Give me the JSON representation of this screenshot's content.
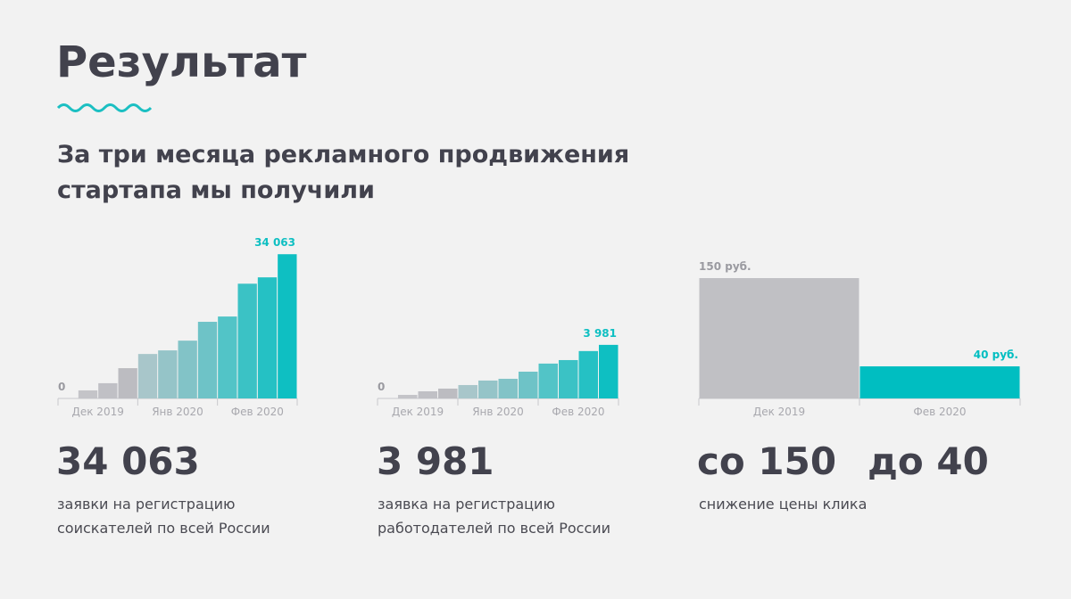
{
  "title": "Результат",
  "subtitle": [
    "За три месяца рекламного продвижения",
    "стартапа мы получили"
  ],
  "chart_data": [
    {
      "type": "bar",
      "categories": [
        "Дек 2019",
        "Янв 2020",
        "Фев 2020"
      ],
      "values": [
        [
          0,
          1900,
          3600,
          7150
        ],
        [
          10500,
          11350,
          13650,
          18100
        ],
        [
          19350,
          27100,
          28600,
          34063
        ]
      ],
      "value_labels": [
        [
          "0",
          null,
          null,
          null
        ],
        [
          null,
          null,
          null,
          null
        ],
        [
          null,
          null,
          null,
          "34 063"
        ]
      ],
      "colors": [
        [
          "#c8c8cc",
          "#c4c4c8",
          "#c0c0c5",
          "#bcbcc1"
        ],
        [
          "#a8c6ca",
          "#95c4c8",
          "#82c3c7",
          "#6ec3c7"
        ],
        [
          "#52c4c7",
          "#3bc2c5",
          "#25c1c4",
          "#0ebfc2"
        ]
      ],
      "ylim": [
        0,
        40000
      ]
    },
    {
      "type": "bar",
      "categories": [
        "Дек 2019",
        "Янв 2020",
        "Фев 2020"
      ],
      "values": [
        [
          0,
          265,
          530,
          730
        ],
        [
          995,
          1330,
          1460,
          1990
        ],
        [
          2590,
          2850,
          3520,
          3981
        ]
      ],
      "value_labels": [
        [
          "0",
          null,
          null,
          null
        ],
        [
          null,
          null,
          null,
          null
        ],
        [
          null,
          null,
          null,
          "3 981"
        ]
      ],
      "colors": [
        [
          "#c8c8cc",
          "#c4c4c8",
          "#c0c0c5",
          "#bcbcc1"
        ],
        [
          "#a8c6ca",
          "#95c4c8",
          "#82c3c7",
          "#6ec3c7"
        ],
        [
          "#52c4c7",
          "#3bc2c5",
          "#25c1c4",
          "#0ebfc2"
        ]
      ],
      "ylim": [
        0,
        10000
      ]
    },
    {
      "type": "bar",
      "categories": [
        "Дек 2019",
        "Фев 2020"
      ],
      "values": [
        [
          150
        ],
        [
          40
        ]
      ],
      "value_labels": [
        [
          "150 руб."
        ],
        [
          "40 руб."
        ]
      ],
      "colors": [
        [
          "#c0c0c4"
        ],
        [
          "#00bec1"
        ]
      ],
      "ylim": [
        0,
        200
      ]
    }
  ],
  "stats": [
    {
      "values": [
        "34 063"
      ],
      "lines": [
        "заявки на регистрацию",
        "соискателей по всей России"
      ]
    },
    {
      "values": [
        "3 981"
      ],
      "lines": [
        "заявка на регистрацию",
        "работодателей по всей России"
      ]
    },
    {
      "values": [
        "со 150",
        "до 40"
      ],
      "lines": [
        "снижение цены клика"
      ]
    }
  ]
}
